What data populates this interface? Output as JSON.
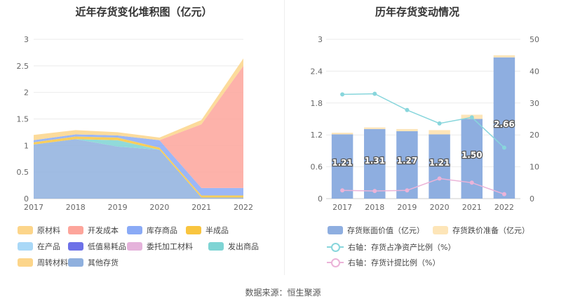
{
  "left": {
    "title": "近年存货变化堆积图（亿元）",
    "legend": [
      {
        "name": "原材料",
        "color": "#fcd58a"
      },
      {
        "name": "开发成本",
        "color": "#fda59b"
      },
      {
        "name": "库存商品",
        "color": "#8aaaf6"
      },
      {
        "name": "半成品",
        "color": "#f9c53f"
      },
      {
        "name": "在产品",
        "color": "#a9d8f7"
      },
      {
        "name": "低值易耗品",
        "color": "#6d71e8"
      },
      {
        "name": "委托加工材料",
        "color": "#e5b3db"
      },
      {
        "name": "发出商品",
        "color": "#7ed4d4"
      },
      {
        "name": "周转材料",
        "color": "#fcd58a"
      },
      {
        "name": "其他存货",
        "color": "#8fb0de"
      }
    ]
  },
  "right": {
    "title": "历年存货变动情况",
    "legend": {
      "bar_book": "存货账面价值（亿元）",
      "bar_impair": "存货跌价准备（亿元）",
      "line_asset": "右轴：存货占净资产比例（%）",
      "line_provision": "右轴：存货计提比例（%）"
    }
  },
  "source": "数据来源：恒生聚源",
  "chart_data": [
    {
      "type": "area",
      "stacked": true,
      "title": "近年存货变化堆积图（亿元）",
      "x": [
        "2017",
        "2018",
        "2019",
        "2020",
        "2021",
        "2022"
      ],
      "ylim": [
        0,
        3
      ],
      "yticks": [
        "0",
        "0.5",
        "1",
        "1.5",
        "2",
        "2.5",
        "3"
      ],
      "series": [
        {
          "name": "其他存货",
          "color": "#8fb0de",
          "values": [
            1.02,
            1.12,
            0.98,
            0.92,
            0.02,
            0.02
          ]
        },
        {
          "name": "发出商品",
          "color": "#7ed4d4",
          "values": [
            0.0,
            0.0,
            0.12,
            0.0,
            0.0,
            0.0
          ]
        },
        {
          "name": "半成品",
          "color": "#f9c53f",
          "values": [
            0.04,
            0.05,
            0.05,
            0.04,
            0.04,
            0.04
          ]
        },
        {
          "name": "库存商品",
          "color": "#8aaaf6",
          "values": [
            0.04,
            0.04,
            0.04,
            0.14,
            0.14,
            0.14
          ]
        },
        {
          "name": "开发成本",
          "color": "#fda59b",
          "values": [
            0.0,
            0.0,
            0.0,
            0.0,
            1.2,
            2.3
          ]
        },
        {
          "name": "原材料",
          "color": "#fcd58a",
          "values": [
            0.1,
            0.08,
            0.06,
            0.05,
            0.08,
            0.14
          ]
        }
      ],
      "grid": true
    },
    {
      "type": "bar",
      "title": "历年存货变动情况",
      "categories": [
        "2017",
        "2018",
        "2019",
        "2020",
        "2021",
        "2022"
      ],
      "ylim_left": [
        0,
        3
      ],
      "yticks_left": [
        "0",
        "0.6",
        "1.2",
        "1.8",
        "2.4",
        "3"
      ],
      "ylim_right": [
        0,
        50
      ],
      "yticks_right": [
        "0",
        "10",
        "20",
        "30",
        "40",
        "50"
      ],
      "series": [
        {
          "name": "存货账面价值（亿元）",
          "axis": "left",
          "stack": "a",
          "color": "#8eaee0",
          "values": [
            1.21,
            1.31,
            1.27,
            1.21,
            1.5,
            2.66
          ],
          "labels": [
            "1.21",
            "1.31",
            "1.27",
            "1.21",
            "1.50",
            "2.66"
          ]
        },
        {
          "name": "存货跌价准备（亿元）",
          "axis": "left",
          "stack": "a",
          "color": "#fde5b8",
          "values": [
            0.03,
            0.03,
            0.04,
            0.08,
            0.08,
            0.04
          ]
        },
        {
          "name": "右轴：存货占净资产比例（%）",
          "axis": "right",
          "type": "line",
          "color": "#88d6dc",
          "values": [
            32.7,
            32.9,
            27.8,
            23.6,
            25.5,
            16.0
          ]
        },
        {
          "name": "右轴：存货计提比例（%）",
          "axis": "right",
          "type": "line",
          "color": "#ebb3d8",
          "values": [
            2.6,
            2.4,
            2.6,
            6.3,
            5.0,
            1.4
          ]
        }
      ],
      "grid": true
    }
  ]
}
